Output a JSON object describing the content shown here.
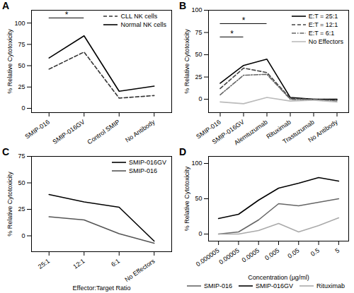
{
  "chart_data": [
    {
      "type": "line",
      "title": "A",
      "categories": [
        "SMIP-016",
        "SMIP-016GV",
        "Control SMIP",
        "No Antibody"
      ],
      "series": [
        {
          "name": "CLL NK cells",
          "color": "#333333",
          "line_style": "dashed",
          "values": [
            46,
            66,
            12,
            15
          ]
        },
        {
          "name": "Normal NK cells",
          "color": "#000000",
          "line_style": "solid",
          "values": [
            59,
            85,
            20,
            26
          ]
        }
      ],
      "ylabel": "% Relative Cytotoxicity",
      "ylim": [
        -5,
        115
      ],
      "yticks": [
        0,
        25,
        50,
        75,
        100
      ],
      "legend": "top-right",
      "grid": false,
      "annotations": [
        {
          "text": "*",
          "x": [
            "SMIP-016",
            "SMIP-016GV"
          ],
          "y": 106
        }
      ]
    },
    {
      "type": "line",
      "title": "B",
      "categories": [
        "SMIP-016",
        "SMIP-016GV",
        "Alemtuzumab",
        "Rituximab",
        "Trastuzumab",
        "No Antibody"
      ],
      "series": [
        {
          "name": "E:T = 25:1",
          "color": "#000000",
          "line_style": "solid",
          "values": [
            18,
            38,
            45,
            2,
            0,
            0
          ]
        },
        {
          "name": "E:T = 12:1",
          "color": "#444444",
          "line_style": "dashed",
          "values": [
            12,
            35,
            30,
            1,
            0,
            -1
          ]
        },
        {
          "name": "E:T = 6:1",
          "color": "#666666",
          "line_style": "dashdot",
          "values": [
            5,
            27,
            28,
            0,
            -1,
            -2
          ]
        },
        {
          "name": "No Effectors",
          "color": "#bbbbbb",
          "line_style": "solid",
          "values": [
            -3,
            -5,
            2,
            -2,
            -1,
            -3
          ]
        }
      ],
      "ylabel": "% Relative Cytotoxicity",
      "ylim": [
        -15,
        100
      ],
      "yticks": [
        0,
        25,
        50,
        75,
        100
      ],
      "legend": "top-right",
      "grid": false,
      "annotations": [
        {
          "text": "*",
          "x": [
            "SMIP-016",
            "SMIP-016GV"
          ],
          "y": 70
        },
        {
          "text": "*",
          "x": [
            "SMIP-016",
            "Alemtuzumab"
          ],
          "y": 85
        }
      ]
    },
    {
      "type": "line",
      "title": "C",
      "categories": [
        "25:1",
        "12:1",
        "6:1",
        "No Effectors"
      ],
      "series": [
        {
          "name": "SMIP-016GV",
          "color": "#000000",
          "line_style": "solid",
          "values": [
            39,
            32,
            27,
            -5
          ]
        },
        {
          "name": "SMIP-016",
          "color": "#555555",
          "line_style": "solid",
          "values": [
            18,
            15,
            2,
            -7
          ]
        }
      ],
      "xlabel": "Effector:Target Ratio",
      "ylabel": "% Relative Cytotoxicity",
      "ylim": [
        -15,
        75
      ],
      "yticks": [
        0,
        25,
        50,
        75
      ],
      "legend": "top-right",
      "grid": false
    },
    {
      "type": "line",
      "title": "D",
      "categories": [
        "0.000005",
        "0.00005",
        "0.0005",
        "0.005",
        "0.05",
        "0.5",
        "5"
      ],
      "series": [
        {
          "name": "SMIP-016",
          "color": "#666666",
          "line_style": "solid",
          "values": [
            0,
            3,
            20,
            43,
            40,
            45,
            50
          ]
        },
        {
          "name": "SMIP-016GV",
          "color": "#000000",
          "line_style": "solid",
          "values": [
            22,
            28,
            48,
            65,
            72,
            80,
            75
          ]
        },
        {
          "name": "Rituximab",
          "color": "#aaaaaa",
          "line_style": "solid",
          "values": [
            0,
            0,
            5,
            15,
            3,
            12,
            23
          ]
        }
      ],
      "xlabel": "Concentration (μg/ml)",
      "ylabel": "% Relative Cytotoxicity",
      "ylim": [
        -10,
        110
      ],
      "yticks": [
        0,
        50,
        100
      ],
      "legend": "bottom",
      "grid": false
    }
  ]
}
